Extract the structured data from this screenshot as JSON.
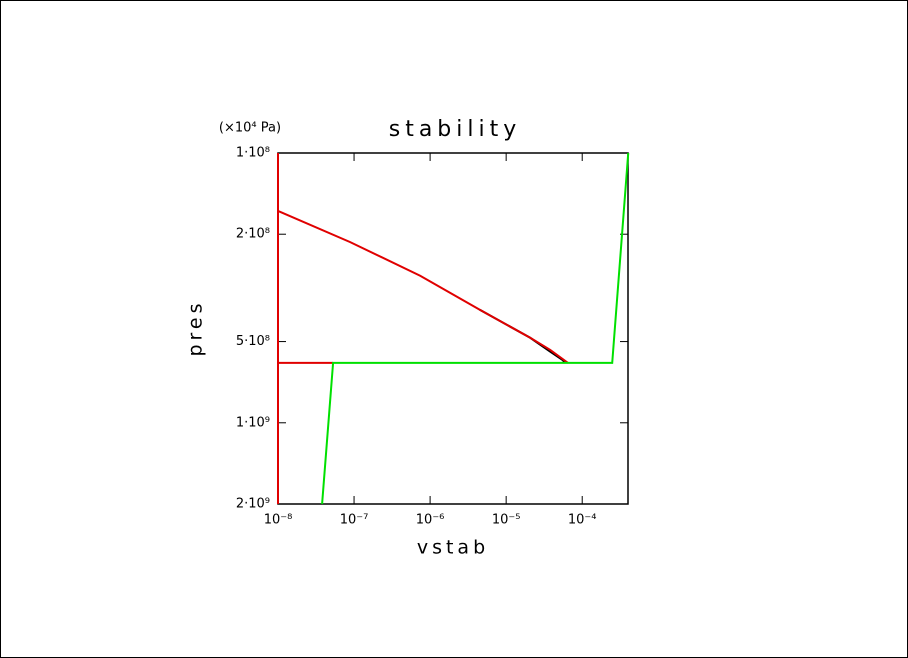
{
  "chart_data": {
    "type": "line",
    "title": "stability",
    "x_label": "vstab",
    "y_label": "pres",
    "y_unit": "(×10⁴ Pa)",
    "xlog": true,
    "ylog": true,
    "yinvert": true,
    "grid": false,
    "xlim": [
      1e-08,
      0.0004
    ],
    "ylim": [
      100000000.0,
      2000000000.0
    ],
    "xticks": [
      {
        "value": 1e-08,
        "label": "10⁻⁸"
      },
      {
        "value": 1e-07,
        "label": "10⁻⁷"
      },
      {
        "value": 1e-06,
        "label": "10⁻⁶"
      },
      {
        "value": 1e-05,
        "label": "10⁻⁵"
      },
      {
        "value": 0.0001,
        "label": "10⁻⁴"
      }
    ],
    "yticks": [
      {
        "value": 100000000.0,
        "label": "1·10⁸"
      },
      {
        "value": 200000000.0,
        "label": "2·10⁸"
      },
      {
        "value": 500000000.0,
        "label": "5·10⁸"
      },
      {
        "value": 1000000000.0,
        "label": "1·10⁹"
      },
      {
        "value": 2000000000.0,
        "label": "2·10⁹"
      }
    ],
    "series": [
      {
        "color": "#000000",
        "x": [
          4.5e-06,
          2.07e-05,
          3.8e-05,
          5.5e-05,
          6e-05
        ],
        "values": [
          381000000.0,
          484000000.0,
          545000000.0,
          585000000.0,
          600000000.0
        ]
      },
      {
        "color": "#e00000",
        "x": [
          1e-08,
          1e-08,
          null,
          1e-08,
          5.3e-08,
          null,
          1e-08,
          8.9e-08,
          7.4e-07,
          4.5e-06,
          2.07e-05,
          3.8e-05,
          6.5e-05
        ],
        "values": [
          100000000.0,
          2000000000.0,
          null,
          600000000.0,
          600000000.0,
          null,
          164000000.0,
          214000000.0,
          285000000.0,
          381000000.0,
          484000000.0,
          537000000.0,
          600000000.0
        ]
      },
      {
        "color": "#00e000",
        "x": [
          3.8e-08,
          5.3e-08,
          0.000248,
          0.000403
        ],
        "values": [
          2000000000.0,
          600000000.0,
          600000000.0,
          100000000.0
        ]
      }
    ]
  }
}
